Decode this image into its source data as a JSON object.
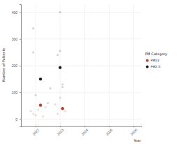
{
  "chart_data": {
    "type": "scatter",
    "y_label": "Number of Patients",
    "x_label": "Year",
    "legend_title": "PM Category",
    "legend": "right",
    "grid": true,
    "xlim": [
      2021.4,
      2026.3
    ],
    "xticks": [
      2022,
      2023,
      2024,
      2025,
      2026
    ],
    "ylim": [
      -25,
      430
    ],
    "yticks": [
      0,
      100,
      200,
      300,
      400
    ],
    "series": [
      {
        "name": "PM10",
        "color": "#c0392b",
        "marker": "circle",
        "x": [
          2022.2,
          2023.1
        ],
        "values": [
          52,
          40
        ],
        "points": {
          "x": [
            2021.8,
            2021.9,
            2022.0,
            2022.1,
            2022.3,
            2022.4,
            2022.8,
            2023.2,
            2022.9,
            2023.0
          ],
          "values": [
            30,
            20,
            15,
            35,
            10,
            45,
            55,
            30,
            20,
            80
          ]
        }
      },
      {
        "name": "PM2.5",
        "color": "#1a1a1a",
        "marker": "circle",
        "x": [
          2022.2,
          2023.0
        ],
        "values": [
          150,
          193
        ],
        "points": {
          "x": [
            2022.0,
            2021.9,
            2021.9,
            2022.5,
            2022.6,
            2023.0,
            2023.0,
            2022.9,
            2023.1,
            2023.1
          ],
          "values": [
            90,
            250,
            340,
            60,
            115,
            400,
            255,
            240,
            120,
            130
          ]
        }
      }
    ]
  }
}
